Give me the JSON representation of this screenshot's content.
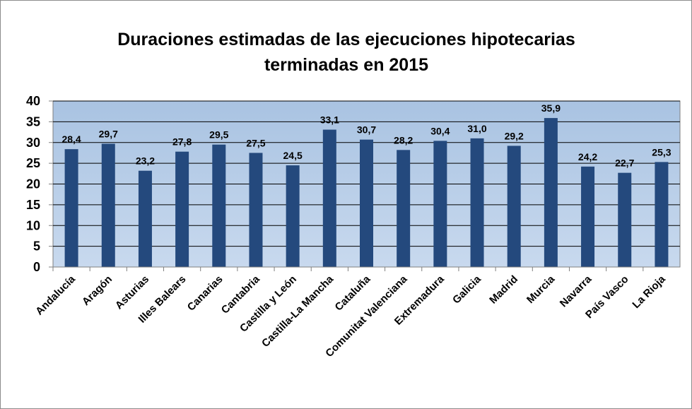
{
  "chart_data": {
    "type": "bar",
    "title": "Duraciones estimadas de las ejecuciones hipotecarias terminadas en 2015",
    "categories": [
      "Andalucía",
      "Aragón",
      "Asturias",
      "Illes Balears",
      "Canarias",
      "Cantabria",
      "Castilla y León",
      "Castilla-La Mancha",
      "Cataluña",
      "Comunitat Valenciana",
      "Extremadura",
      "Galicia",
      "Madrid",
      "Murcia",
      "Navarra",
      "País Vasco",
      "La Rioja"
    ],
    "values": [
      28.4,
      29.7,
      23.2,
      27.8,
      29.5,
      27.5,
      24.5,
      33.1,
      30.7,
      28.2,
      30.4,
      31.0,
      29.2,
      35.9,
      24.2,
      22.7,
      25.3
    ],
    "value_labels": [
      "28,4",
      "29,7",
      "23,2",
      "27,8",
      "29,5",
      "27,5",
      "24,5",
      "33,1",
      "30,7",
      "28,2",
      "30,4",
      "31,0",
      "29,2",
      "35,9",
      "24,2",
      "22,7",
      "25,3"
    ],
    "color": "#24497d",
    "ylim": [
      0,
      40
    ],
    "yticks": [
      0,
      5,
      10,
      15,
      20,
      25,
      30,
      35,
      40
    ],
    "grid": true
  }
}
